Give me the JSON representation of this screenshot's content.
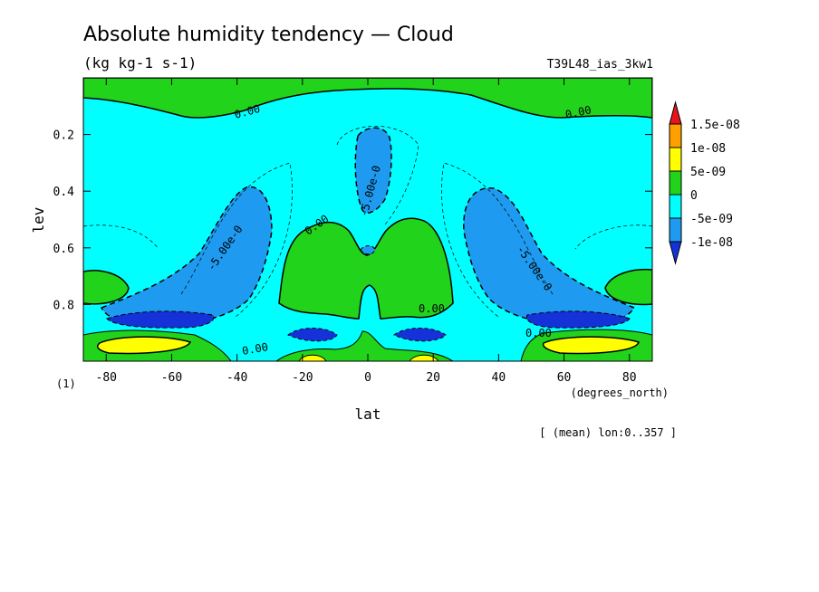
{
  "chart_data": {
    "type": "heatmap",
    "title": "Absolute humidity tendency — Cloud",
    "subtitle": "(kg kg-1 s-1)",
    "run_label": "T39L48_ias_3kw1",
    "xlabel": "lat",
    "xunits": "(degrees_north)",
    "ylabel": "lev",
    "yunits": "(1)",
    "footnote": "[ (mean) lon:0..357 ]",
    "xlim": [
      -87,
      87
    ],
    "ylim": [
      1.0,
      0.0
    ],
    "x_ticks": [
      "-80",
      "-60",
      "-40",
      "-20",
      "0",
      "20",
      "40",
      "60",
      "80"
    ],
    "x_tick_values": [
      -80,
      -60,
      -40,
      -20,
      0,
      20,
      40,
      60,
      80
    ],
    "y_ticks": [
      "0.2",
      "0.4",
      "0.6",
      "0.8"
    ],
    "y_tick_values": [
      0.2,
      0.4,
      0.6,
      0.8
    ],
    "colorbar": {
      "labels": [
        "1.5e-08",
        "1e-08",
        "5e-09",
        "0",
        "-5e-09",
        "-1e-08"
      ],
      "levels": [
        1.5e-08,
        1e-08,
        5e-09,
        0,
        -5e-09,
        -1e-08
      ],
      "colors": [
        "#e8141a",
        "#ffa000",
        "#ffff00",
        "#22d31c",
        "#00ffff",
        "#1e9bf0",
        "#1432d8"
      ]
    },
    "contour_labels": [
      "0.00",
      "0.00",
      "0.00",
      "0.00",
      "0.00",
      "0.00",
      "-5.00e-0",
      "-5.00e-0",
      "-5.00e-0"
    ],
    "regions": {
      "top_band": {
        "lev": [
          0.0,
          0.12
        ],
        "value": "0 to 5e-09"
      },
      "upper_tropical_minimum": {
        "lat": [
          -5,
          5
        ],
        "lev": [
          0.2,
          0.55
        ],
        "value": "-5e-09 to -1e-08"
      },
      "midlatitude_minima": {
        "lat": [
          -45,
          -30,
          30,
          45
        ],
        "lev": [
          0.4,
          0.9
        ],
        "value": "-5e-09 to -1e-08"
      },
      "lower_minima": {
        "lat": [
          -60,
          -20,
          20,
          60
        ],
        "lev": [
          0.82,
          0.9
        ],
        "value": "below -1e-08"
      },
      "tropical_positive": {
        "lat": [
          -25,
          25
        ],
        "lev": [
          0.5,
          0.85
        ],
        "value": "0 to 5e-09"
      },
      "surface_maxima": {
        "lat": [
          -75,
          -55,
          55,
          75
        ],
        "lev": [
          0.9,
          0.96
        ],
        "value": "5e-09 to 1e-08"
      }
    }
  }
}
